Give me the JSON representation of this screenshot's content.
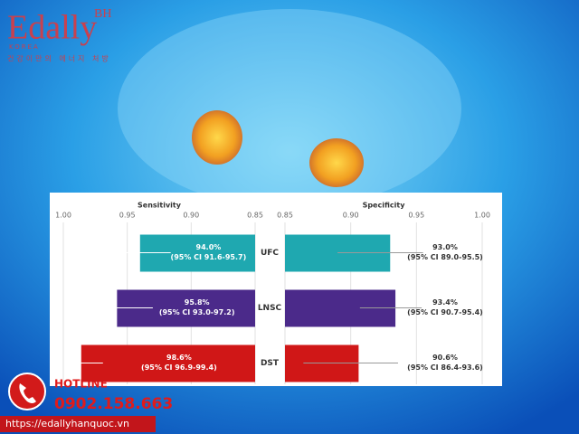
{
  "logo": {
    "name": "Edally",
    "badge": "BH",
    "country": "KOREA",
    "tagline": "건강이만의 에너지 처방"
  },
  "chart_data": {
    "type": "bar",
    "orientation": "horizontal",
    "categories": [
      "UFC",
      "LNSC",
      "DST"
    ],
    "colors": [
      "#1fa8b0",
      "#4b2a8a",
      "#d01717"
    ],
    "grid": true,
    "panels": [
      {
        "title": "Sensitivity",
        "xlim": [
          1.0,
          0.85
        ],
        "xticks": [
          {
            "value": 1.0,
            "label": "1.00"
          },
          0.95,
          {
            "value": 0.9,
            "label": "0.90"
          },
          0.85
        ],
        "values": [
          0.94,
          0.958,
          0.986
        ],
        "value_labels": [
          "94.0%",
          "95.8%",
          "98.6%"
        ],
        "ci_low": [
          0.916,
          0.93,
          0.969
        ],
        "ci_high": [
          0.957,
          0.972,
          0.994
        ],
        "ci_labels": [
          "(95% CI 91.6-95.7)",
          "(95% CI 93.0-97.2)",
          "(95% CI 96.9-99.4)"
        ]
      },
      {
        "title": "Specificity",
        "xlim": [
          0.85,
          1.0
        ],
        "xticks": [
          0.85,
          {
            "value": 0.9,
            "label": "0.90"
          },
          0.95,
          {
            "value": 1.0,
            "label": "1.00"
          }
        ],
        "values": [
          0.93,
          0.934,
          0.906
        ],
        "value_labels": [
          "93.0%",
          "93.4%",
          "90.6%"
        ],
        "ci_low": [
          0.89,
          0.907,
          0.864
        ],
        "ci_high": [
          0.955,
          0.954,
          0.936
        ],
        "ci_labels": [
          "(95% CI 89.0-95.5)",
          "(95% CI 90.7-95.4)",
          "(95% CI 86.4-93.6)"
        ]
      }
    ]
  },
  "hotline": {
    "label": "HOTLINE",
    "phone": "0902.158.663",
    "url": "https://edallyhanquoc.vn"
  }
}
